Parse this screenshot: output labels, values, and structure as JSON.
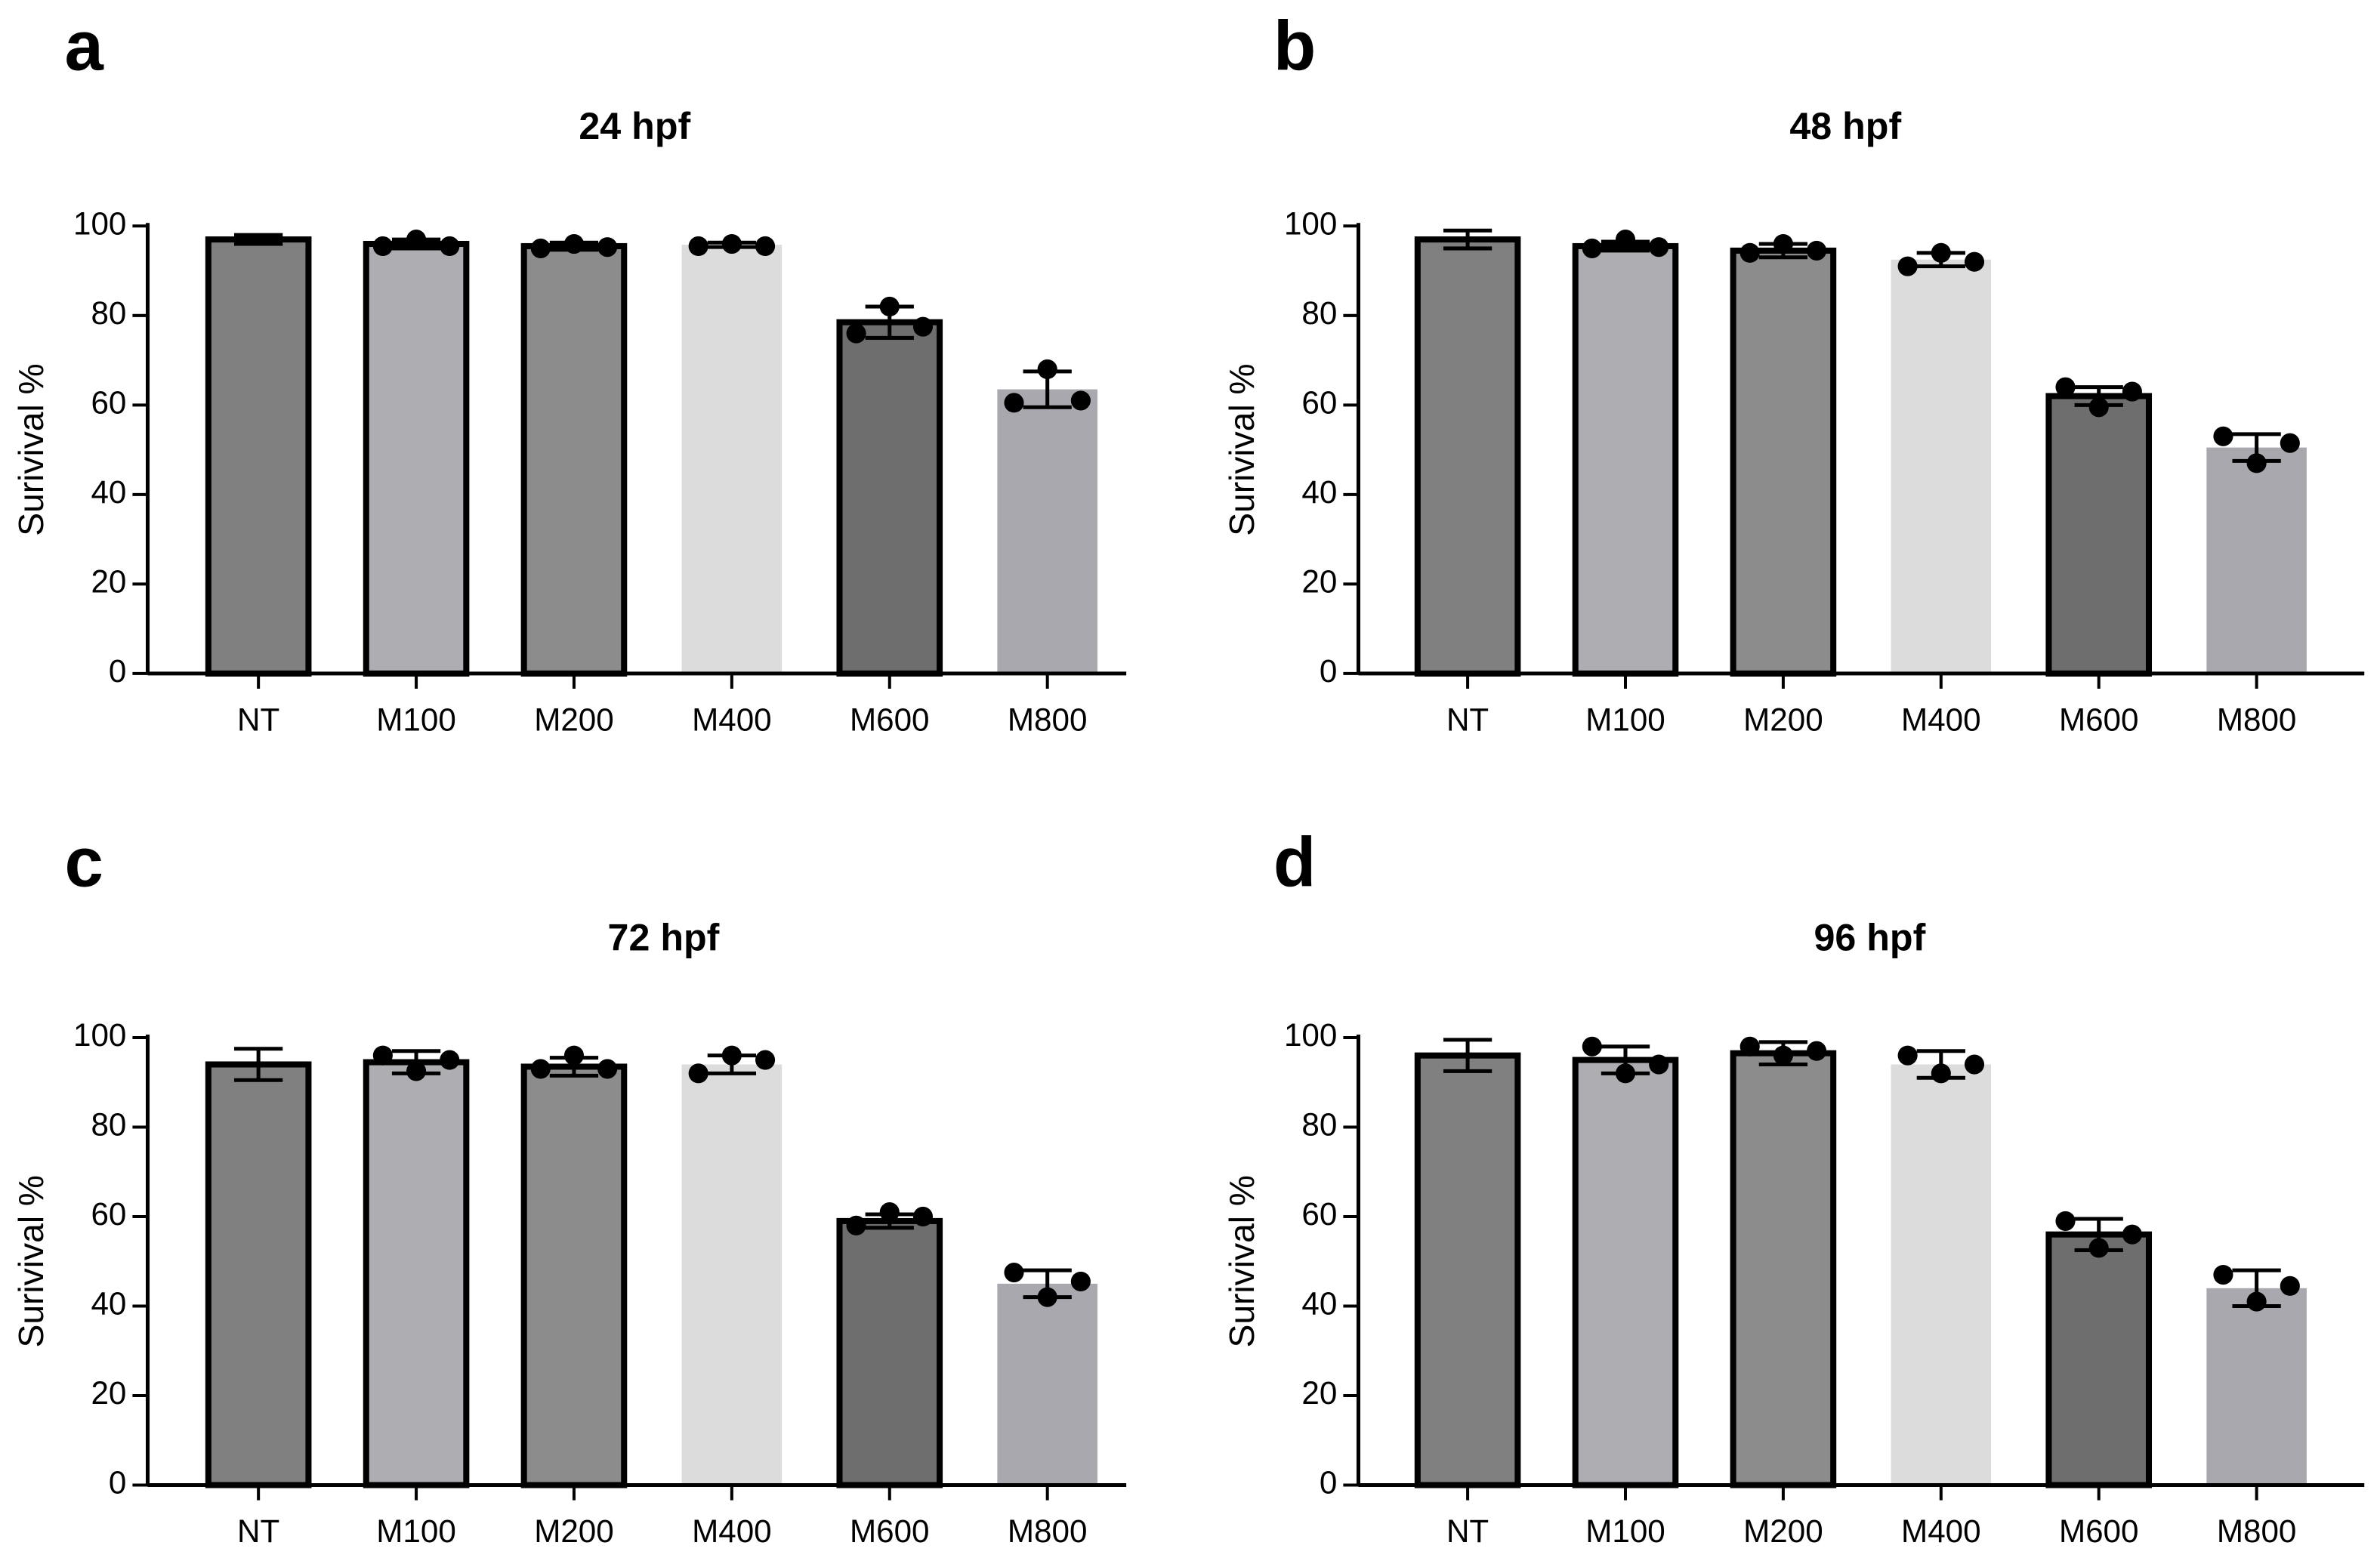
{
  "chart_data": [
    {
      "type": "bar",
      "label": "a",
      "title": "24 hpf",
      "y_label": "Surivival %",
      "categories": [
        "NT",
        "M100",
        "M200",
        "M400",
        "M600",
        "M800"
      ],
      "values": [
        97,
        96,
        95.5,
        95.8,
        78.5,
        63.5
      ],
      "errors": [
        1,
        1,
        0.8,
        0.5,
        3.5,
        4
      ],
      "points": [
        null,
        [
          95.5,
          97,
          95.5
        ],
        [
          95,
          96,
          95.3
        ],
        [
          95.5,
          96,
          95.5
        ],
        [
          76,
          82,
          77.5
        ],
        [
          60.5,
          68,
          61
        ]
      ],
      "colors": [
        "#808080",
        "#adadb2",
        "#8c8c8c",
        "#dcdcdc",
        "#6e6e6e",
        "#a8a8ae"
      ],
      "edgecolors": [
        "#000000",
        "#000000",
        "#000000",
        null,
        "#000000",
        null
      ],
      "ylim": [
        0,
        100
      ],
      "yticks": [
        0,
        20,
        40,
        60,
        80,
        100
      ]
    },
    {
      "type": "bar",
      "label": "b",
      "title": "48 hpf",
      "y_label": "Surivival %",
      "categories": [
        "NT",
        "M100",
        "M200",
        "M400",
        "M600",
        "M800"
      ],
      "values": [
        97,
        95.5,
        94.5,
        92.5,
        62,
        50.5
      ],
      "errors": [
        2,
        1,
        1.5,
        1.5,
        2,
        3
      ],
      "points": [
        null,
        [
          95,
          97,
          95.3
        ],
        [
          94,
          96,
          94.5
        ],
        [
          91,
          94,
          92
        ],
        [
          64,
          59.5,
          63
        ],
        [
          53,
          47,
          51.5
        ]
      ],
      "colors": [
        "#808080",
        "#adadb2",
        "#8c8c8c",
        "#dcdcdc",
        "#6e6e6e",
        "#a8a8ae"
      ],
      "edgecolors": [
        "#000000",
        "#000000",
        "#000000",
        null,
        "#000000",
        null
      ],
      "ylim": [
        0,
        100
      ],
      "yticks": [
        0,
        20,
        40,
        60,
        80,
        100
      ]
    },
    {
      "type": "bar",
      "label": "c",
      "title": "72 hpf",
      "y_label": "Surivival %",
      "categories": [
        "NT",
        "M100",
        "M200",
        "M400",
        "M600",
        "M800"
      ],
      "values": [
        94,
        94.5,
        93.5,
        94,
        59,
        45
      ],
      "errors": [
        3.5,
        2.5,
        2,
        2,
        1.5,
        3
      ],
      "points": [
        null,
        [
          96,
          92.5,
          95
        ],
        [
          93,
          96,
          93
        ],
        [
          92,
          96,
          95
        ],
        [
          58,
          61,
          60
        ],
        [
          47.5,
          42,
          45.5
        ]
      ],
      "colors": [
        "#808080",
        "#adadb2",
        "#8c8c8c",
        "#dcdcdc",
        "#6e6e6e",
        "#a8a8ae"
      ],
      "edgecolors": [
        "#000000",
        "#000000",
        "#000000",
        null,
        "#000000",
        null
      ],
      "ylim": [
        0,
        100
      ],
      "yticks": [
        0,
        20,
        40,
        60,
        80,
        100
      ]
    },
    {
      "type": "bar",
      "label": "d",
      "title": "96 hpf",
      "y_label": "Surivival %",
      "categories": [
        "NT",
        "M100",
        "M200",
        "M400",
        "M600",
        "M800"
      ],
      "values": [
        96,
        95,
        96.5,
        94,
        56,
        44
      ],
      "errors": [
        3.5,
        3,
        2.5,
        3,
        3.5,
        4
      ],
      "points": [
        null,
        [
          98,
          92,
          94
        ],
        [
          98,
          96,
          97
        ],
        [
          96,
          92,
          94
        ],
        [
          59,
          53,
          56
        ],
        [
          47,
          41,
          44.5
        ]
      ],
      "colors": [
        "#808080",
        "#adadb2",
        "#8c8c8c",
        "#dcdcdc",
        "#6e6e6e",
        "#a8a8ae"
      ],
      "edgecolors": [
        "#000000",
        "#000000",
        "#000000",
        null,
        "#000000",
        null
      ],
      "ylim": [
        0,
        100
      ],
      "yticks": [
        0,
        20,
        40,
        60,
        80,
        100
      ]
    }
  ]
}
